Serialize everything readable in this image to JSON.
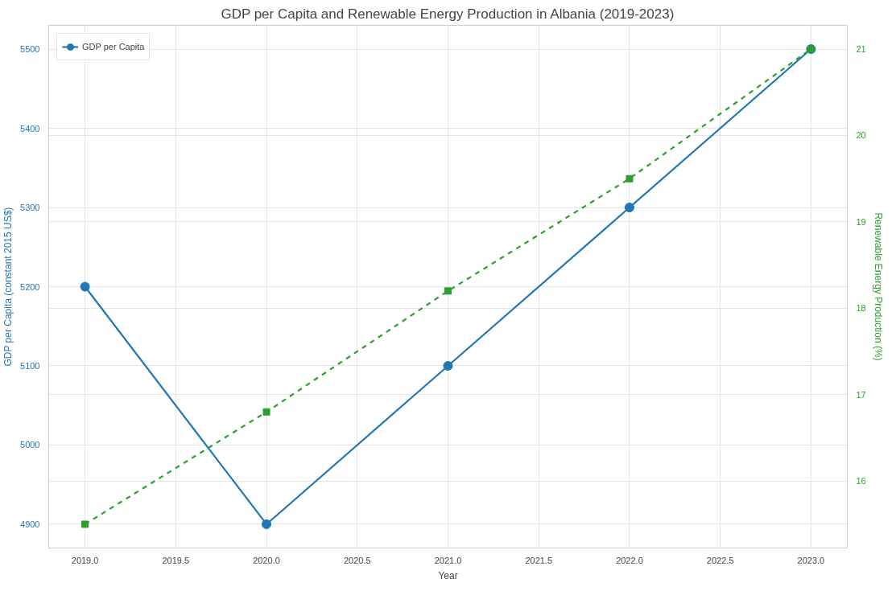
{
  "chart_data": {
    "type": "line",
    "title": "GDP per Capita and Renewable Energy Production in Albania (2019-2023)",
    "xlabel": "Year",
    "ylabel": "GDP per Capita (constant 2015 US$)",
    "y2label": "Renewable Energy Production (%)",
    "x": [
      2019,
      2020,
      2021,
      2022,
      2023
    ],
    "series": [
      {
        "name": "GDP per Capita",
        "color": "#1f77b4",
        "values": [
          5200,
          4900,
          5100,
          5300,
          5500
        ],
        "marker": "circle",
        "line_style": "solid"
      },
      {
        "color": "#2ca02c",
        "values": [
          15.5,
          16.8,
          18.2,
          19.5,
          21.0
        ],
        "axis": "y2",
        "marker": "square",
        "line_style": "dashed"
      }
    ],
    "xlim": [
      2018.8,
      2023.2
    ],
    "xticks": [
      {
        "value": 2019,
        "label": "2019.0"
      },
      {
        "value": 2019.5,
        "label": "2019.5"
      },
      {
        "value": 2020,
        "label": "2020.0"
      },
      {
        "value": 2020.5,
        "label": "2020.5"
      },
      {
        "value": 2021,
        "label": "2021.0"
      },
      {
        "value": 2021.5,
        "label": "2021.5"
      },
      {
        "value": 2022,
        "label": "2022.0"
      },
      {
        "value": 2022.5,
        "label": "2022.5"
      },
      {
        "value": 2023,
        "label": "2023.0"
      }
    ],
    "ylim": [
      4870,
      5530
    ],
    "yticks": [
      4900,
      5000,
      5100,
      5200,
      5300,
      5400,
      5500
    ],
    "y2lim": [
      15.225,
      21.275
    ],
    "y2ticks": [
      16,
      17,
      18,
      19,
      20,
      21
    ],
    "grid": true,
    "legend": "top left"
  }
}
